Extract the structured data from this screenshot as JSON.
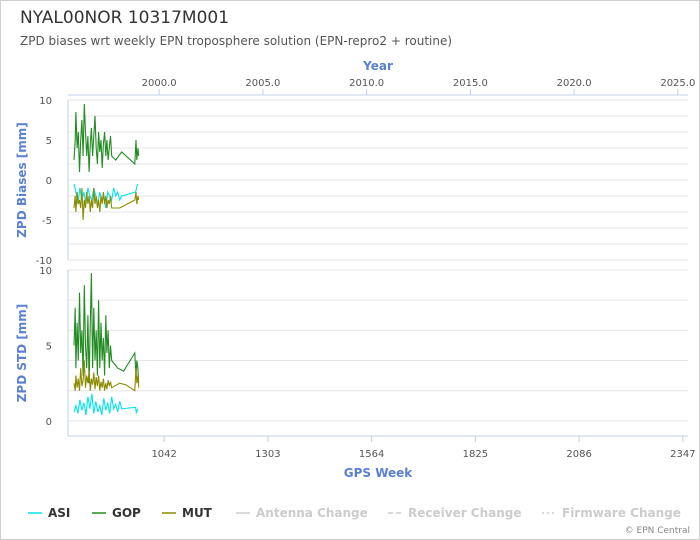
{
  "header": {
    "title": "NYAL00NOR 10317M001",
    "subtitle": "ZPD biases wrt weekly EPN troposphere solution (EPN-repro2 + routine)"
  },
  "credits": "© EPN Central",
  "chart_data": {
    "type": "line",
    "top_axis": {
      "title": "Year",
      "ticks": [
        "2000.0",
        "2005.0",
        "2010.0",
        "2015.0",
        "2020.0",
        "2025.0"
      ]
    },
    "x_axis": {
      "title": "GPS Week",
      "range": [
        800,
        2360
      ],
      "ticks": [
        1042,
        1303,
        1564,
        1825,
        2086,
        2347
      ]
    },
    "panels": [
      {
        "id": "bias",
        "ylabel": "ZPD Biases [mm]",
        "ylim": [
          -10,
          10
        ],
        "yticks": [
          10,
          5,
          0,
          -5,
          -10
        ]
      },
      {
        "id": "std",
        "ylabel": "ZPD STD [mm]",
        "ylim": [
          -1,
          10
        ],
        "yticks": [
          10,
          5,
          0
        ]
      }
    ],
    "series": [
      {
        "name": "ASI",
        "color": "#00e5ee",
        "bias": [
          [
            815,
            -0.5
          ],
          [
            820,
            -1.5
          ],
          [
            825,
            -3.0
          ],
          [
            830,
            -1.0
          ],
          [
            835,
            -2.5
          ],
          [
            840,
            -1.5
          ],
          [
            845,
            -3.0
          ],
          [
            850,
            -1.0
          ],
          [
            855,
            -2.0
          ],
          [
            860,
            -2.5
          ],
          [
            865,
            -1.0
          ],
          [
            870,
            -2.0
          ],
          [
            875,
            -3.0
          ],
          [
            880,
            -1.5
          ],
          [
            885,
            -2.5
          ],
          [
            890,
            -2.0
          ],
          [
            895,
            -3.5
          ],
          [
            900,
            -1.5
          ],
          [
            905,
            -2.0
          ],
          [
            910,
            -2.5
          ],
          [
            915,
            -1.0
          ],
          [
            920,
            -2.0
          ],
          [
            925,
            -1.5
          ],
          [
            930,
            -2.5
          ],
          [
            935,
            -2.0
          ],
          [
            970,
            -1.5
          ],
          [
            975,
            -0.5
          ]
        ],
        "std": [
          [
            815,
            0.6
          ],
          [
            820,
            1.0
          ],
          [
            825,
            0.5
          ],
          [
            830,
            1.4
          ],
          [
            835,
            0.7
          ],
          [
            840,
            1.2
          ],
          [
            845,
            0.4
          ],
          [
            850,
            1.6
          ],
          [
            855,
            0.8
          ],
          [
            860,
            1.8
          ],
          [
            865,
            0.5
          ],
          [
            870,
            1.3
          ],
          [
            875,
            0.6
          ],
          [
            880,
            1.0
          ],
          [
            885,
            0.4
          ],
          [
            890,
            1.5
          ],
          [
            895,
            0.7
          ],
          [
            900,
            1.2
          ],
          [
            905,
            0.5
          ],
          [
            910,
            1.6
          ],
          [
            915,
            0.8
          ],
          [
            920,
            1.1
          ],
          [
            925,
            0.6
          ],
          [
            930,
            1.3
          ],
          [
            935,
            0.8
          ],
          [
            970,
            0.9
          ],
          [
            972,
            0.5
          ],
          [
            975,
            0.8
          ]
        ]
      },
      {
        "name": "GOP",
        "color": "#228b22",
        "bias": [
          [
            815,
            2.5
          ],
          [
            818,
            5.0
          ],
          [
            820,
            8.5
          ],
          [
            823,
            4.0
          ],
          [
            826,
            6.0
          ],
          [
            829,
            1.0
          ],
          [
            832,
            5.0
          ],
          [
            835,
            7.5
          ],
          [
            838,
            3.0
          ],
          [
            841,
            9.5
          ],
          [
            844,
            6.0
          ],
          [
            847,
            3.0
          ],
          [
            850,
            5.5
          ],
          [
            853,
            1.0
          ],
          [
            856,
            4.5
          ],
          [
            859,
            6.5
          ],
          [
            862,
            3.0
          ],
          [
            865,
            5.5
          ],
          [
            868,
            8.0
          ],
          [
            871,
            4.0
          ],
          [
            874,
            2.0
          ],
          [
            877,
            6.0
          ],
          [
            880,
            3.5
          ],
          [
            883,
            5.0
          ],
          [
            886,
            1.5
          ],
          [
            889,
            4.5
          ],
          [
            892,
            6.0
          ],
          [
            895,
            3.0
          ],
          [
            898,
            5.0
          ],
          [
            901,
            2.5
          ],
          [
            904,
            4.0
          ],
          [
            907,
            5.5
          ],
          [
            910,
            3.0
          ],
          [
            920,
            2.5
          ],
          [
            935,
            3.5
          ],
          [
            968,
            2.0
          ],
          [
            971,
            5.0
          ],
          [
            973,
            2.5
          ],
          [
            976,
            4.0
          ],
          [
            978,
            3.0
          ]
        ],
        "std": [
          [
            815,
            5.0
          ],
          [
            818,
            7.5
          ],
          [
            820,
            3.5
          ],
          [
            823,
            6.5
          ],
          [
            826,
            4.0
          ],
          [
            829,
            8.5
          ],
          [
            832,
            4.5
          ],
          [
            835,
            6.0
          ],
          [
            838,
            3.0
          ],
          [
            841,
            9.0
          ],
          [
            844,
            5.0
          ],
          [
            847,
            3.5
          ],
          [
            850,
            7.0
          ],
          [
            853,
            2.5
          ],
          [
            856,
            6.5
          ],
          [
            859,
            9.8
          ],
          [
            862,
            3.5
          ],
          [
            865,
            7.5
          ],
          [
            868,
            4.0
          ],
          [
            871,
            6.0
          ],
          [
            874,
            3.0
          ],
          [
            877,
            8.0
          ],
          [
            880,
            3.5
          ],
          [
            883,
            6.5
          ],
          [
            886,
            4.0
          ],
          [
            889,
            5.5
          ],
          [
            892,
            3.0
          ],
          [
            895,
            7.0
          ],
          [
            898,
            4.5
          ],
          [
            901,
            6.0
          ],
          [
            904,
            3.5
          ],
          [
            907,
            5.0
          ],
          [
            910,
            4.0
          ],
          [
            925,
            3.5
          ],
          [
            940,
            3.3
          ],
          [
            968,
            4.5
          ],
          [
            971,
            3.0
          ],
          [
            973,
            4.0
          ],
          [
            976,
            3.5
          ],
          [
            978,
            2.5
          ]
        ]
      },
      {
        "name": "MUT",
        "color": "#8b8b00",
        "bias": [
          [
            815,
            -3.5
          ],
          [
            818,
            -2.0
          ],
          [
            820,
            -4.0
          ],
          [
            823,
            -1.5
          ],
          [
            826,
            -3.0
          ],
          [
            829,
            -2.5
          ],
          [
            832,
            -3.5
          ],
          [
            835,
            -1.0
          ],
          [
            838,
            -5.0
          ],
          [
            841,
            -2.5
          ],
          [
            844,
            -3.5
          ],
          [
            847,
            -1.5
          ],
          [
            850,
            -3.0
          ],
          [
            853,
            -2.0
          ],
          [
            856,
            -4.0
          ],
          [
            859,
            -2.5
          ],
          [
            862,
            -3.5
          ],
          [
            865,
            -1.0
          ],
          [
            868,
            -3.0
          ],
          [
            871,
            -2.0
          ],
          [
            874,
            -3.5
          ],
          [
            877,
            -2.5
          ],
          [
            880,
            -4.0
          ],
          [
            883,
            -2.0
          ],
          [
            886,
            -3.0
          ],
          [
            889,
            -1.5
          ],
          [
            892,
            -3.0
          ],
          [
            895,
            -2.0
          ],
          [
            898,
            -3.5
          ],
          [
            901,
            -2.5
          ],
          [
            904,
            -3.0
          ],
          [
            907,
            -2.0
          ],
          [
            910,
            -3.5
          ],
          [
            930,
            -3.5
          ],
          [
            968,
            -2.5
          ],
          [
            971,
            -1.5
          ],
          [
            973,
            -3.0
          ],
          [
            976,
            -2.0
          ],
          [
            978,
            -2.5
          ]
        ],
        "std": [
          [
            815,
            2.5
          ],
          [
            818,
            2.0
          ],
          [
            820,
            3.0
          ],
          [
            823,
            2.2
          ],
          [
            826,
            2.8
          ],
          [
            829,
            2.0
          ],
          [
            832,
            3.5
          ],
          [
            835,
            2.3
          ],
          [
            838,
            2.7
          ],
          [
            841,
            4.0
          ],
          [
            844,
            2.2
          ],
          [
            847,
            3.0
          ],
          [
            850,
            2.5
          ],
          [
            853,
            3.3
          ],
          [
            856,
            2.0
          ],
          [
            859,
            2.8
          ],
          [
            862,
            2.4
          ],
          [
            865,
            3.2
          ],
          [
            868,
            2.1
          ],
          [
            871,
            2.9
          ],
          [
            874,
            2.3
          ],
          [
            877,
            3.0
          ],
          [
            880,
            2.0
          ],
          [
            883,
            2.6
          ],
          [
            886,
            2.2
          ],
          [
            889,
            2.8
          ],
          [
            892,
            2.0
          ],
          [
            895,
            2.5
          ],
          [
            898,
            2.1
          ],
          [
            901,
            2.7
          ],
          [
            904,
            2.3
          ],
          [
            907,
            2.6
          ],
          [
            910,
            2.2
          ],
          [
            930,
            2.5
          ],
          [
            945,
            2.4
          ],
          [
            968,
            2.0
          ],
          [
            971,
            3.5
          ],
          [
            973,
            2.5
          ],
          [
            976,
            3.0
          ],
          [
            978,
            2.2
          ]
        ]
      }
    ],
    "legend": {
      "placement": "bottom",
      "items": [
        {
          "label": "ASI",
          "color": "#00e5ee",
          "style": "solid",
          "active": true
        },
        {
          "label": "GOP",
          "color": "#228b22",
          "style": "solid",
          "active": true
        },
        {
          "label": "MUT",
          "color": "#8b8b00",
          "style": "solid",
          "active": true
        },
        {
          "label": "Antenna Change",
          "color": "#cccccc",
          "style": "solid",
          "active": false
        },
        {
          "label": "Receiver Change",
          "color": "#cccccc",
          "style": "dashed",
          "active": false
        },
        {
          "label": "Firmware Change",
          "color": "#cccccc",
          "style": "dotted",
          "active": false
        }
      ]
    },
    "grid": true
  }
}
